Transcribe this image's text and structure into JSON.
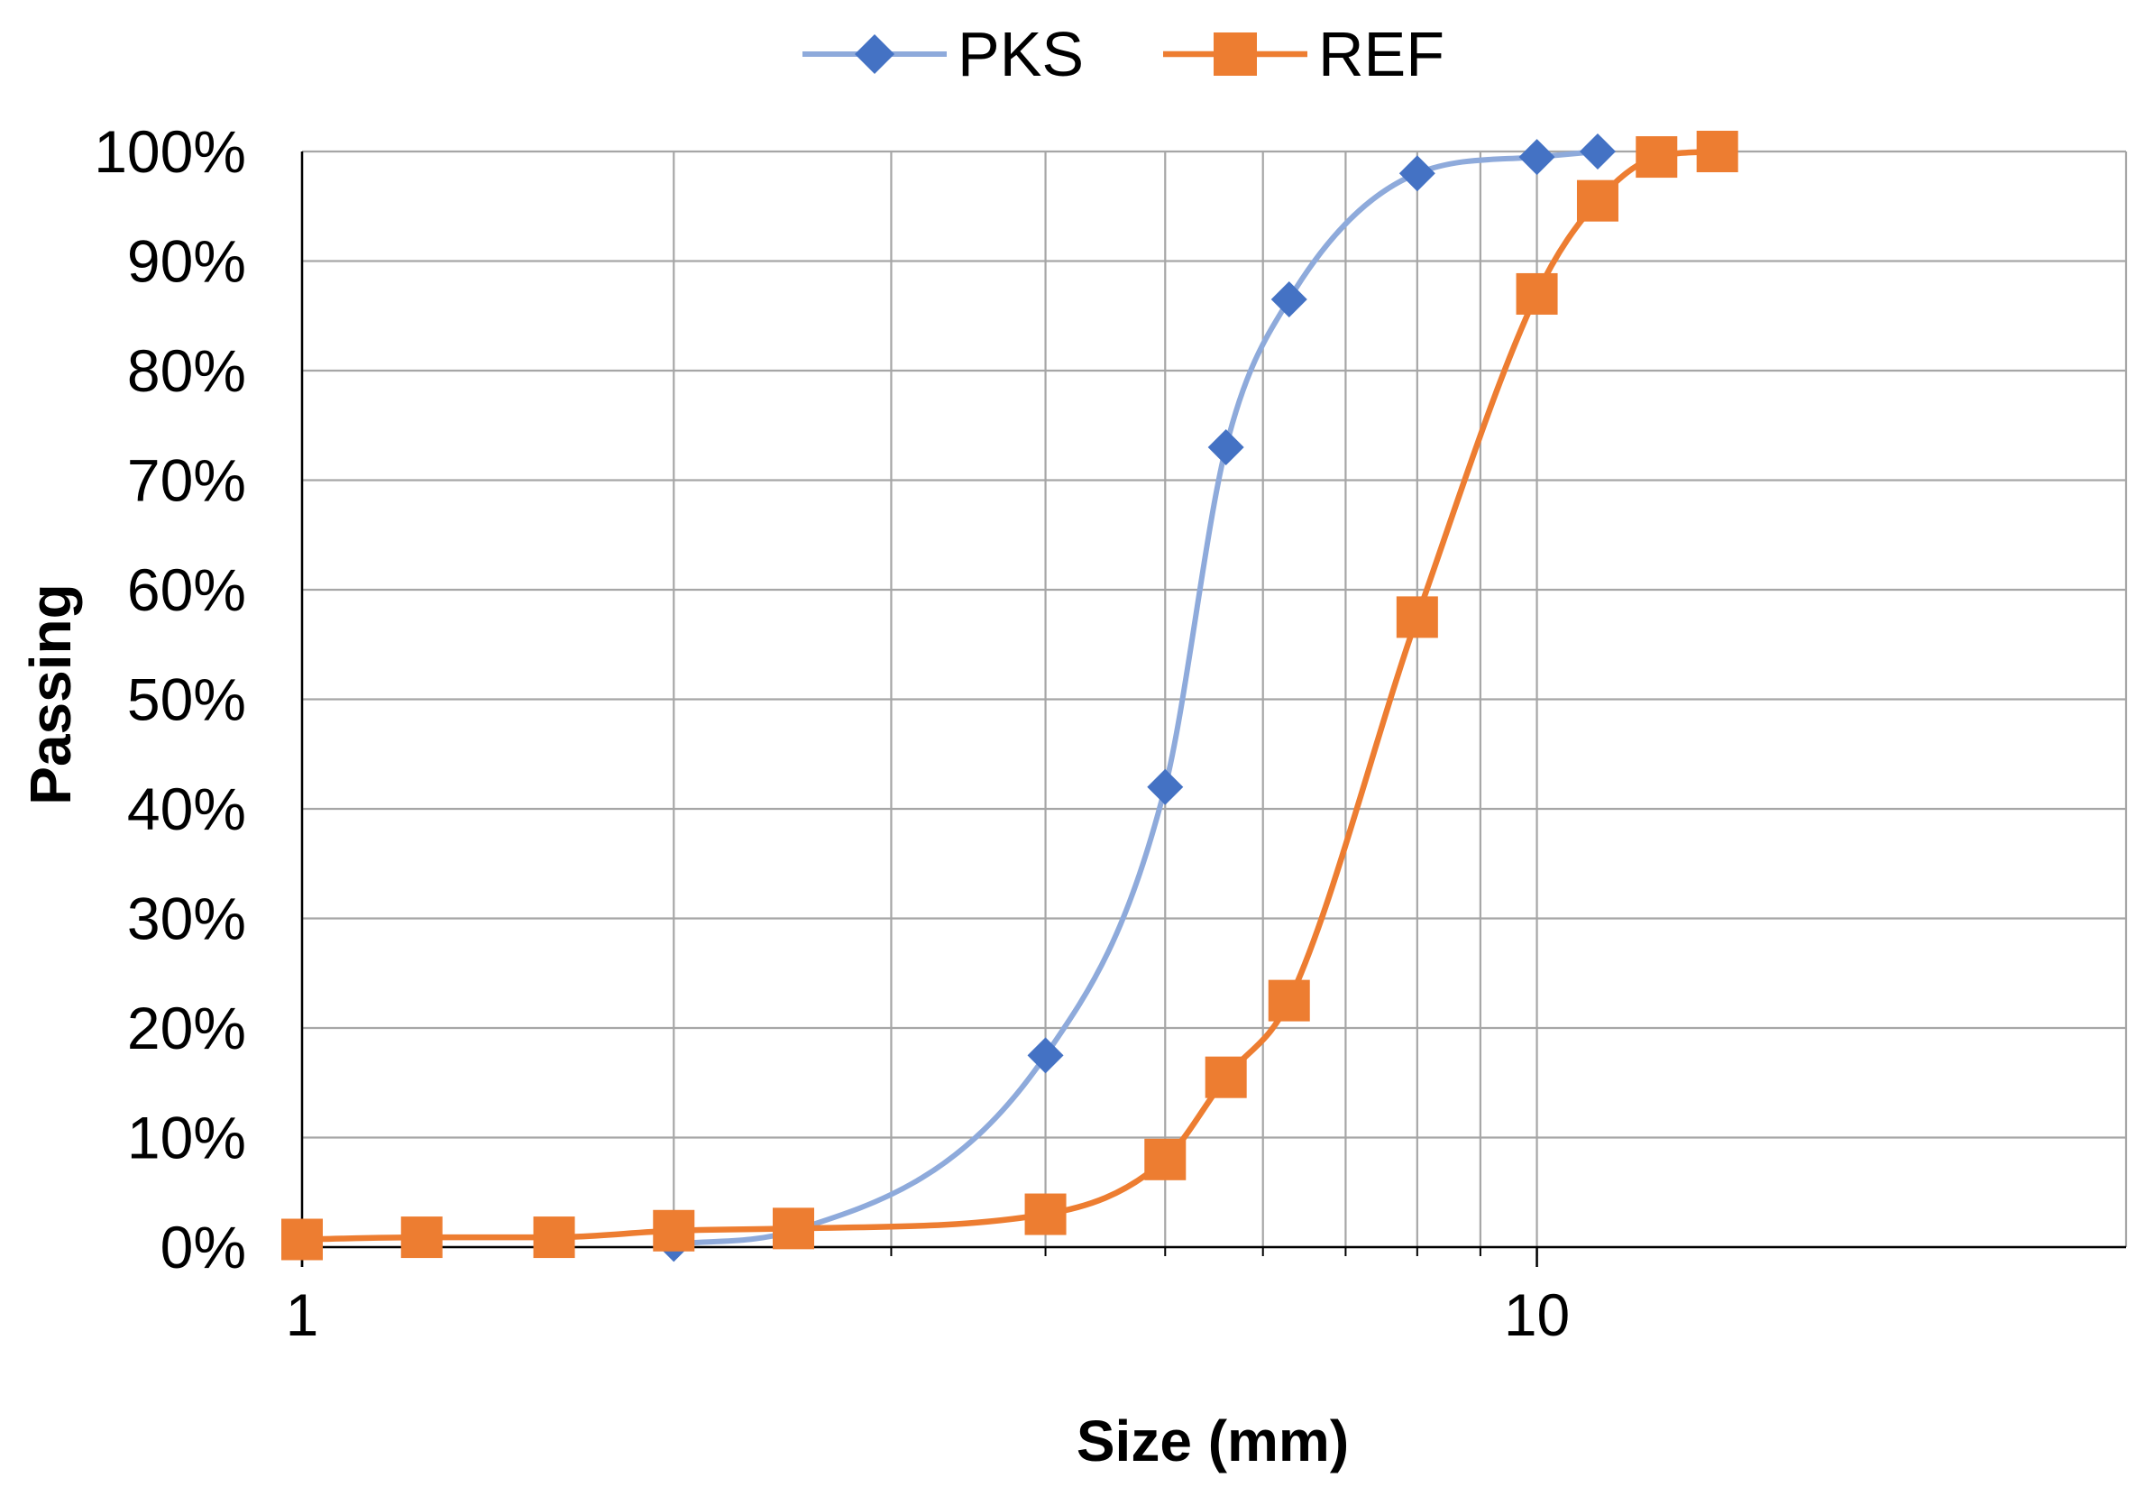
{
  "chart_data": {
    "type": "line",
    "title": "",
    "xlabel": "Size (mm)",
    "ylabel": "Passing",
    "xscale": "log",
    "xlim": [
      1,
      30
    ],
    "ylim": [
      0,
      100
    ],
    "x_minor_gridlines": [
      1,
      2,
      3,
      4,
      5,
      6,
      7,
      8,
      9,
      10
    ],
    "x_tick_labels": [
      {
        "value": 1,
        "label": "1"
      },
      {
        "value": 10,
        "label": "10"
      }
    ],
    "y_ticks": [
      0,
      10,
      20,
      30,
      40,
      50,
      60,
      70,
      80,
      90,
      100
    ],
    "y_tick_labels": [
      "0%",
      "10%",
      "20%",
      "30%",
      "40%",
      "50%",
      "60%",
      "70%",
      "80%",
      "90%",
      "100%"
    ],
    "grid": true,
    "legend_position": "top-center",
    "series": [
      {
        "name": "PKS",
        "color": "#8eaadb",
        "marker_color": "#4472c4",
        "marker": "diamond",
        "x": [
          2.0,
          2.5,
          4.0,
          5.0,
          5.6,
          6.3,
          8.0,
          10.0,
          11.2
        ],
        "y": [
          0.3,
          1.5,
          17.5,
          42,
          73,
          86.5,
          98,
          99.5,
          100
        ]
      },
      {
        "name": "REF",
        "color": "#ed7d31",
        "marker_color": "#ed7d31",
        "marker": "square",
        "x": [
          1.0,
          1.25,
          1.6,
          2.0,
          2.5,
          4.0,
          5.0,
          5.6,
          6.3,
          8.0,
          10.0,
          11.2,
          12.5,
          14.0
        ],
        "y": [
          0.7,
          0.9,
          0.9,
          1.5,
          1.7,
          3.0,
          8.0,
          15.5,
          22.5,
          57.5,
          87,
          95.5,
          99.5,
          100
        ]
      }
    ]
  }
}
